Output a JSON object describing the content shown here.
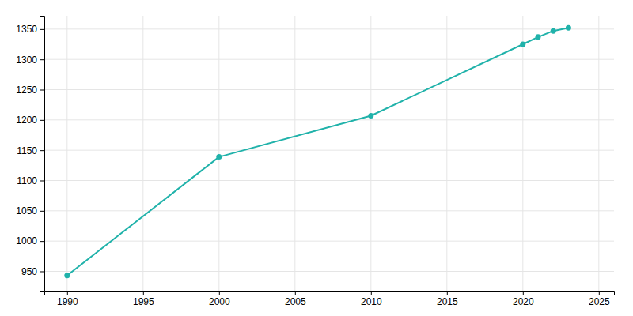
{
  "chart_data": {
    "type": "line",
    "x": [
      1990,
      2000,
      2010,
      2020,
      2021,
      2022,
      2023
    ],
    "values": [
      943,
      1139,
      1207,
      1325,
      1337,
      1347,
      1352
    ],
    "color": "#20B2AA",
    "marker": "circle",
    "xlim": [
      1988.5,
      2026
    ],
    "ylim": [
      918,
      1372
    ],
    "xticks": [
      1990,
      1995,
      2000,
      2005,
      2010,
      2015,
      2020,
      2025
    ],
    "yticks": [
      950,
      1000,
      1050,
      1100,
      1150,
      1200,
      1250,
      1300,
      1350
    ],
    "grid": true
  }
}
